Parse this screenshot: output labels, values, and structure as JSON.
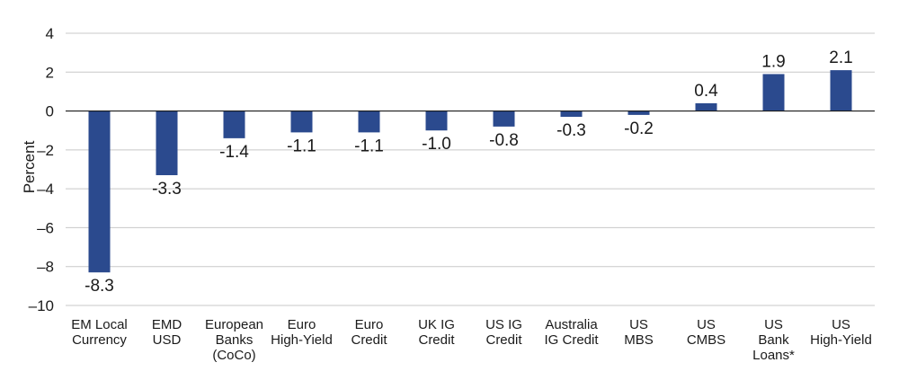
{
  "chart_data": {
    "type": "bar",
    "title": "",
    "xlabel": "",
    "ylabel": "Percent",
    "ylim": [
      -10,
      4
    ],
    "yticks": [
      4,
      2,
      0,
      -2,
      -4,
      -6,
      -8,
      -10
    ],
    "ytick_labels": [
      "4",
      "2",
      "0",
      "–2",
      "–4",
      "–6",
      "–8",
      "–10"
    ],
    "grid": true,
    "bar_color": "#2b4a8e",
    "categories": [
      [
        "EM Local",
        "Currency"
      ],
      [
        "EMD",
        "USD"
      ],
      [
        "European",
        "Banks",
        "(CoCo)"
      ],
      [
        "Euro",
        "High-Yield"
      ],
      [
        "Euro",
        "Credit"
      ],
      [
        "UK IG",
        "Credit"
      ],
      [
        "US IG",
        "Credit"
      ],
      [
        "Australia",
        "IG Credit"
      ],
      [
        "US",
        "MBS"
      ],
      [
        "US",
        "CMBS"
      ],
      [
        "US",
        "Bank",
        "Loans*"
      ],
      [
        "US",
        "High-Yield"
      ]
    ],
    "values": [
      -8.3,
      -3.3,
      -1.4,
      -1.1,
      -1.1,
      -1.0,
      -0.8,
      -0.3,
      -0.2,
      0.4,
      1.9,
      2.1
    ],
    "value_labels": [
      "-8.3",
      "-3.3",
      "-1.4",
      "-1.1",
      "-1.1",
      "-1.0",
      "-0.8",
      "-0.3",
      "-0.2",
      "0.4",
      "1.9",
      "2.1"
    ]
  }
}
